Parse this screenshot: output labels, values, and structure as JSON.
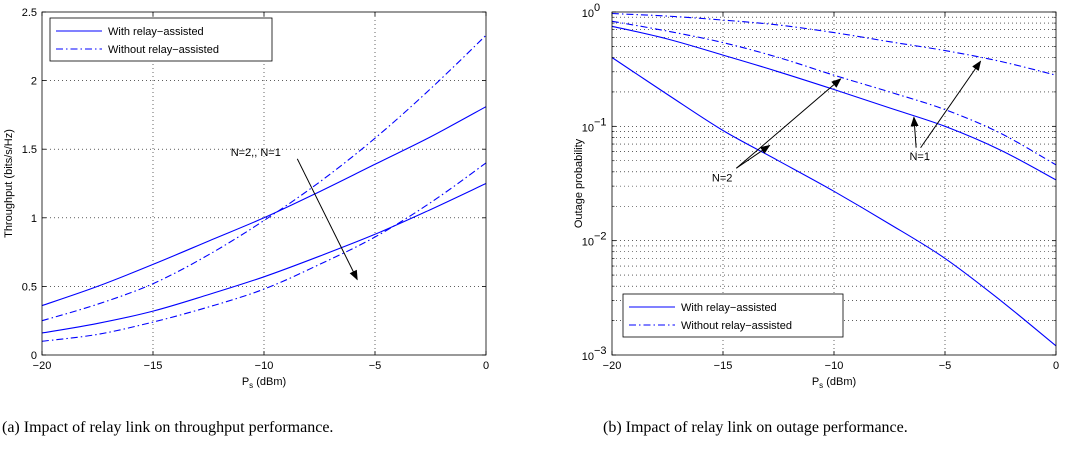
{
  "captions": {
    "a": "(a) Impact of relay link on throughput performance.",
    "b": "(b) Impact of relay link on outage performance."
  },
  "chart_data": [
    {
      "type": "line",
      "title": "",
      "xlabel_main": "P",
      "xlabel_sub": "s",
      "xlabel_unit": " (dBm)",
      "ylabel": "Throughput (bits/s/Hz)",
      "xlim": [
        -20,
        0
      ],
      "ylim": [
        0,
        2.5
      ],
      "yscale": "linear",
      "grid": true,
      "legend_position": "top-left",
      "x_ticks": [
        -20,
        -15,
        -10,
        -5,
        0
      ],
      "x_tick_labels": [
        "−20",
        "−15",
        "−10",
        "−5",
        "0"
      ],
      "y_ticks": [
        0,
        0.5,
        1,
        1.5,
        2,
        2.5
      ],
      "y_tick_labels": [
        "0",
        "0.5",
        "1",
        "1.5",
        "2",
        "2.5"
      ],
      "legend": [
        {
          "label": "With relay−assisted",
          "style": "solid"
        },
        {
          "label": "Without relay−assisted",
          "style": "dashdot"
        }
      ],
      "series": [
        {
          "style": "solid",
          "x": [
            -20,
            -17.5,
            -15,
            -12.5,
            -10,
            -7.5,
            -5,
            -2.5,
            0
          ],
          "values": [
            0.36,
            0.5,
            0.66,
            0.83,
            1.0,
            1.19,
            1.39,
            1.59,
            1.81
          ]
        },
        {
          "style": "solid",
          "x": [
            -20,
            -17.5,
            -15,
            -12.5,
            -10,
            -7.5,
            -5,
            -2.5,
            0
          ],
          "values": [
            0.16,
            0.23,
            0.32,
            0.44,
            0.57,
            0.72,
            0.88,
            1.06,
            1.25
          ]
        },
        {
          "style": "dashdot",
          "x": [
            -20,
            -17.5,
            -15,
            -12.5,
            -10,
            -7.5,
            -5,
            -2.5,
            0
          ],
          "values": [
            0.25,
            0.37,
            0.52,
            0.73,
            0.98,
            1.26,
            1.58,
            1.94,
            2.33
          ]
        },
        {
          "style": "dashdot",
          "x": [
            -20,
            -17.5,
            -15,
            -12.5,
            -10,
            -7.5,
            -5,
            -2.5,
            0
          ],
          "values": [
            0.1,
            0.15,
            0.24,
            0.35,
            0.48,
            0.66,
            0.86,
            1.11,
            1.4
          ]
        }
      ],
      "annotations": [
        {
          "text": "N=2,, N=1",
          "x": -11.5,
          "y": 1.45,
          "arrow_from": [
            -8.5,
            1.43
          ],
          "arrow_to": [
            -5.8,
            0.55
          ]
        }
      ],
      "color": "#0000ff"
    },
    {
      "type": "line",
      "title": "",
      "xlabel_main": "P",
      "xlabel_sub": "s",
      "xlabel_unit": " (dBm)",
      "ylabel": "Outage probability",
      "xlim": [
        -20,
        0
      ],
      "ylim": [
        0.001,
        1
      ],
      "yscale": "log",
      "grid": true,
      "legend_position": "bottom-left",
      "x_ticks": [
        -20,
        -15,
        -10,
        -5,
        0
      ],
      "x_tick_labels": [
        "−20",
        "−15",
        "−10",
        "−5",
        "0"
      ],
      "y_ticks": [
        0.001,
        0.01,
        0.1,
        1
      ],
      "y_tick_bases": [
        "10",
        "10",
        "10",
        "10"
      ],
      "y_tick_exps": [
        "−3",
        "−2",
        "−1",
        "0"
      ],
      "legend": [
        {
          "label": "With relay−assisted",
          "style": "solid"
        },
        {
          "label": "Without relay−assisted",
          "style": "dashdot"
        }
      ],
      "series": [
        {
          "style": "solid",
          "x": [
            -20,
            -17.5,
            -15,
            -12.5,
            -10,
            -7.5,
            -5,
            -2.5,
            0
          ],
          "values": [
            0.4,
            0.19,
            0.092,
            0.05,
            0.027,
            0.014,
            0.007,
            0.003,
            0.0012
          ]
        },
        {
          "style": "solid",
          "x": [
            -20,
            -17.5,
            -15,
            -12.5,
            -10,
            -7.5,
            -5,
            -2.5,
            0
          ],
          "values": [
            0.75,
            0.58,
            0.42,
            0.3,
            0.21,
            0.145,
            0.1,
            0.062,
            0.034
          ]
        },
        {
          "style": "dashdot",
          "x": [
            -20,
            -17.5,
            -15,
            -12.5,
            -10,
            -7.5,
            -5,
            -2.5,
            0
          ],
          "values": [
            0.83,
            0.68,
            0.54,
            0.4,
            0.28,
            0.2,
            0.14,
            0.087,
            0.046
          ]
        },
        {
          "style": "dashdot",
          "x": [
            -20,
            -17.5,
            -15,
            -12.5,
            -10,
            -7.5,
            -5,
            -2.5,
            0
          ],
          "values": [
            0.97,
            0.92,
            0.85,
            0.77,
            0.66,
            0.55,
            0.46,
            0.37,
            0.28
          ]
        }
      ],
      "annotations": [
        {
          "text": "N=2",
          "x": -15.5,
          "y": 0.033,
          "arrows": [
            {
              "from": [
                -14.4,
                0.043
              ],
              "to": [
                -12.9,
                0.068
              ]
            },
            {
              "from": [
                -14.4,
                0.043
              ],
              "to": [
                -9.7,
                0.26
              ]
            }
          ]
        },
        {
          "text": "N=1",
          "x": -6.6,
          "y": 0.051,
          "arrows": [
            {
              "from": [
                -6.3,
                0.065
              ],
              "to": [
                -6.4,
                0.12
              ]
            },
            {
              "from": [
                -6.1,
                0.065
              ],
              "to": [
                -3.4,
                0.37
              ]
            }
          ]
        }
      ],
      "color": "#0000ff"
    }
  ]
}
